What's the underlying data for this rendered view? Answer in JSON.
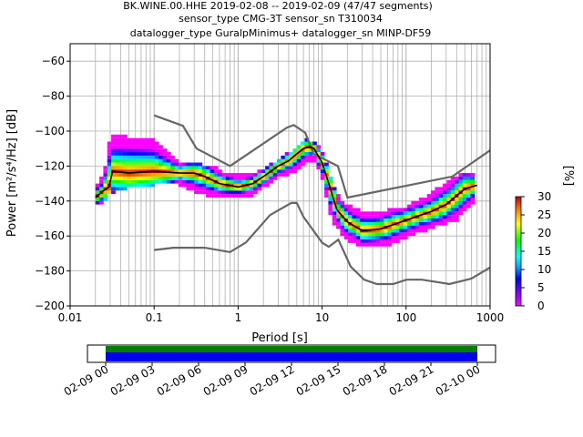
{
  "title_lines": [
    "BK.WINE.00.HHE   2019-02-08 -- 2019-02-09  (47/47 segments)",
    "sensor_type CMG-3T sensor_sn T310034",
    "datalogger_type GuralpMinimus+ datalogger_sn MINP-DF59"
  ],
  "colors": {
    "grid": "#b0b0b0",
    "noise_model": "#666666",
    "mean_line": "#000000",
    "cbar_bottom": "#ff00ff",
    "cbar_top": "#8b0000",
    "coverage_green": "#008000",
    "coverage_blue": "#0000ee"
  },
  "chart_data": {
    "type": "heatmap",
    "xlabel": "Period [s]",
    "ylabel": "Power [m²/s⁴/Hz] [dB]",
    "xscale": "log",
    "xlim": [
      0.01,
      1000
    ],
    "ylim": [
      -200,
      -50
    ],
    "grid": true,
    "x_ticks": [
      {
        "value": 0.01,
        "label": "0.01"
      },
      {
        "value": 0.1,
        "label": "0.1"
      },
      {
        "value": 1,
        "label": "1"
      },
      {
        "value": 10,
        "label": "10"
      },
      {
        "value": 100,
        "label": "100"
      },
      {
        "value": 1000,
        "label": "1000"
      }
    ],
    "y_ticks": [
      {
        "value": -60,
        "label": "−60"
      },
      {
        "value": -80,
        "label": "−80"
      },
      {
        "value": -100,
        "label": "−100"
      },
      {
        "value": -120,
        "label": "−120"
      },
      {
        "value": -140,
        "label": "−140"
      },
      {
        "value": -160,
        "label": "−160"
      },
      {
        "value": -180,
        "label": "−180"
      },
      {
        "value": -200,
        "label": "−200"
      }
    ],
    "noise_models": [
      {
        "points": [
          [
            0.1,
            -91
          ],
          [
            0.22,
            -97
          ],
          [
            0.32,
            -110
          ],
          [
            0.8,
            -120
          ],
          [
            3.8,
            -98
          ],
          [
            4.6,
            -96.5
          ],
          [
            6.3,
            -101
          ],
          [
            7.9,
            -113
          ],
          [
            15.4,
            -120
          ],
          [
            20,
            -138
          ],
          [
            354.8,
            -126
          ],
          [
            1000,
            -111
          ]
        ]
      },
      {
        "points": [
          [
            0.1,
            -168
          ],
          [
            0.17,
            -166.7
          ],
          [
            0.4,
            -166.7
          ],
          [
            0.8,
            -169.2
          ],
          [
            1.24,
            -163.7
          ],
          [
            2.4,
            -148
          ],
          [
            4.3,
            -141.1
          ],
          [
            5,
            -141.1
          ],
          [
            6,
            -149
          ],
          [
            10,
            -163.8
          ],
          [
            12,
            -166.2
          ],
          [
            15.6,
            -162.1
          ],
          [
            21.9,
            -177.5
          ],
          [
            31.6,
            -185
          ],
          [
            45,
            -187.5
          ],
          [
            70,
            -187.5
          ],
          [
            101,
            -185
          ],
          [
            154,
            -185
          ],
          [
            328,
            -187.5
          ],
          [
            600,
            -184.4
          ],
          [
            1000,
            -178
          ]
        ]
      }
    ],
    "mean_curve": [
      [
        0.02,
        -138
      ],
      [
        0.025,
        -134
      ],
      [
        0.029,
        -132
      ],
      [
        0.032,
        -123
      ],
      [
        0.05,
        -124
      ],
      [
        0.1,
        -123
      ],
      [
        0.2,
        -124
      ],
      [
        0.3,
        -124
      ],
      [
        0.4,
        -126
      ],
      [
        0.6,
        -130
      ],
      [
        1,
        -132
      ],
      [
        1.5,
        -130
      ],
      [
        2,
        -126
      ],
      [
        3,
        -120
      ],
      [
        4,
        -117
      ],
      [
        5,
        -113
      ],
      [
        6,
        -110
      ],
      [
        7,
        -109
      ],
      [
        8,
        -110
      ],
      [
        10,
        -118
      ],
      [
        12,
        -130
      ],
      [
        15,
        -145
      ],
      [
        20,
        -152
      ],
      [
        30,
        -157
      ],
      [
        50,
        -156
      ],
      [
        100,
        -151
      ],
      [
        200,
        -146
      ],
      [
        300,
        -142
      ],
      [
        500,
        -133
      ],
      [
        700,
        -131
      ]
    ],
    "psd_envelope": [
      {
        "x": 0.02,
        "top": -132,
        "bottom": -142
      },
      {
        "x": 0.025,
        "top": -126,
        "bottom": -140
      },
      {
        "x": 0.03,
        "top": -104,
        "bottom": -135
      },
      {
        "x": 0.05,
        "top": -104,
        "bottom": -132
      },
      {
        "x": 0.1,
        "top": -106,
        "bottom": -130
      },
      {
        "x": 0.15,
        "top": -113,
        "bottom": -129
      },
      {
        "x": 0.2,
        "top": -118,
        "bottom": -130
      },
      {
        "x": 0.3,
        "top": -119,
        "bottom": -134
      },
      {
        "x": 0.5,
        "top": -121,
        "bottom": -137
      },
      {
        "x": 0.8,
        "top": -126,
        "bottom": -138
      },
      {
        "x": 1.5,
        "top": -126,
        "bottom": -136
      },
      {
        "x": 3,
        "top": -117,
        "bottom": -126
      },
      {
        "x": 5,
        "top": -110,
        "bottom": -122
      },
      {
        "x": 6.5,
        "top": -105,
        "bottom": -117
      },
      {
        "x": 8,
        "top": -107,
        "bottom": -116
      },
      {
        "x": 10,
        "top": -112,
        "bottom": -126
      },
      {
        "x": 13,
        "top": -130,
        "bottom": -150
      },
      {
        "x": 18,
        "top": -142,
        "bottom": -160
      },
      {
        "x": 30,
        "top": -147,
        "bottom": -166
      },
      {
        "x": 60,
        "top": -146,
        "bottom": -165
      },
      {
        "x": 100,
        "top": -144,
        "bottom": -160
      },
      {
        "x": 200,
        "top": -136,
        "bottom": -155
      },
      {
        "x": 400,
        "top": -126,
        "bottom": -150
      },
      {
        "x": 650,
        "top": -124,
        "bottom": -140
      }
    ]
  },
  "colorbar": {
    "label": "[%]",
    "range": [
      0,
      30
    ],
    "ticks": [
      {
        "value": 0,
        "label": "0"
      },
      {
        "value": 5,
        "label": "5"
      },
      {
        "value": 10,
        "label": "10"
      },
      {
        "value": 15,
        "label": "15"
      },
      {
        "value": 20,
        "label": "20"
      },
      {
        "value": 25,
        "label": "25"
      },
      {
        "value": 30,
        "label": "30"
      }
    ]
  },
  "timeline": {
    "labels": [
      "02-09 00",
      "02-09 03",
      "02-09 06",
      "02-09 09",
      "02-09 12",
      "02-09 15",
      "02-09 18",
      "02-09 21",
      "02-10 00"
    ],
    "coverage": [
      {
        "start_hour": 0,
        "end_hour": 24
      }
    ]
  }
}
